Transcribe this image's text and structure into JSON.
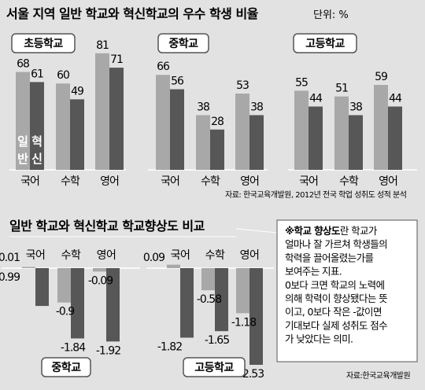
{
  "title": "서울 지역 일반 학교와 혁신학교의 우수 학생 비율",
  "unit": "단위: %",
  "source_top": "자료: 한국교육개발원, 2012년 전국 학업 성취도 성적 분석",
  "subtitle": "일반 학교와 혁신학교 학교향상도 비교",
  "source_bottom": "자료:한국교육개발원",
  "note": {
    "bold": "※학교 향상도",
    "lines": [
      "란 학교가",
      "얼마나 잘 가르쳐 학생들의",
      "학력을 끌어올렸는가를",
      "보여주는 지표.",
      "0보다 크면 학교의 노력에",
      "의해 학력이 향상됐다는 뜻",
      "이고, 0보다 작은 -값이면",
      "기대보다 실제 성취도 점수",
      "가 낮았다는 의미."
    ]
  },
  "series_labels": [
    "일반",
    "혁신"
  ],
  "colors": {
    "general": "#a8a8a8",
    "innovative": "#575757",
    "background": "#e2e2e2"
  },
  "chart_data": [
    {
      "type": "bar",
      "panel": "초등학교",
      "categories": [
        "국어",
        "수학",
        "영어"
      ],
      "series": [
        {
          "name": "일반",
          "values": [
            68,
            60,
            81
          ]
        },
        {
          "name": "혁신",
          "values": [
            61,
            49,
            71
          ]
        }
      ],
      "ylim": [
        0,
        90
      ]
    },
    {
      "type": "bar",
      "panel": "중학교",
      "categories": [
        "국어",
        "수학",
        "영어"
      ],
      "series": [
        {
          "name": "일반",
          "values": [
            66,
            38,
            53
          ]
        },
        {
          "name": "혁신",
          "values": [
            56,
            28,
            38
          ]
        }
      ],
      "ylim": [
        0,
        90
      ]
    },
    {
      "type": "bar",
      "panel": "고등학교",
      "categories": [
        "국어",
        "수학",
        "영어"
      ],
      "series": [
        {
          "name": "일반",
          "values": [
            55,
            51,
            59
          ]
        },
        {
          "name": "혁신",
          "values": [
            44,
            38,
            44
          ]
        }
      ],
      "ylim": [
        0,
        90
      ]
    },
    {
      "type": "bar",
      "panel": "중학교",
      "categories": [
        "국어",
        "수학",
        "영어"
      ],
      "series": [
        {
          "name": "일반",
          "values": [
            0.01,
            -0.9,
            -0.09
          ]
        },
        {
          "name": "혁신",
          "values": [
            -0.99,
            -1.84,
            -1.92
          ]
        }
      ],
      "ylim": [
        -2.6,
        0.1
      ]
    },
    {
      "type": "bar",
      "panel": "고등학교",
      "categories": [
        "국어",
        "수학",
        "영어"
      ],
      "series": [
        {
          "name": "일반",
          "values": [
            0.09,
            -0.58,
            -1.18
          ]
        },
        {
          "name": "혁신",
          "values": [
            -1.82,
            -1.65,
            -2.53
          ]
        }
      ],
      "ylim": [
        -2.6,
        0.1
      ]
    }
  ]
}
